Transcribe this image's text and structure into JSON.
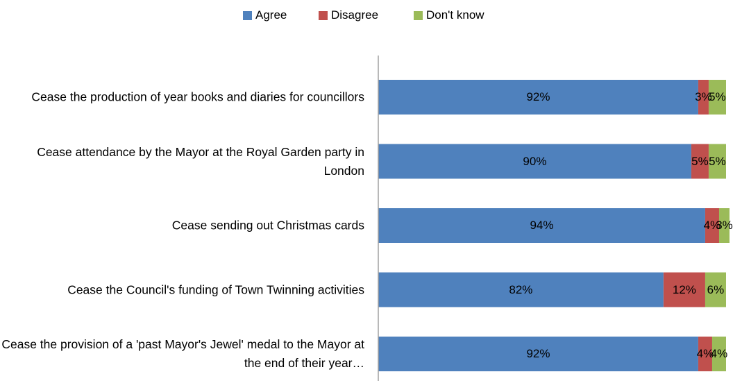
{
  "chart_data": {
    "type": "stacked-bar-horizontal",
    "categories": [
      "Cease the production of year books and diaries for councillors",
      "Cease attendance by the Mayor at the Royal Garden party in London",
      "Cease sending out Christmas cards",
      "Cease the Council's funding of Town Twinning activities",
      "Cease the provision of a 'past Mayor's Jewel' medal to the Mayor at the end of their year…"
    ],
    "series": [
      {
        "name": "Agree",
        "color": "#4f81bd",
        "values": [
          92,
          90,
          94,
          82,
          92
        ],
        "value_labels": [
          "92%",
          "90%",
          "94%",
          "82%",
          "92%"
        ]
      },
      {
        "name": "Disagree",
        "color": "#c0504d",
        "values": [
          3,
          5,
          4,
          12,
          4
        ],
        "value_labels": [
          "3%",
          "5%",
          "4%",
          "12%",
          "4%"
        ]
      },
      {
        "name": "Don't know",
        "color": "#9bbb59",
        "values": [
          5,
          5,
          3,
          6,
          4
        ],
        "value_labels": [
          "5%",
          "5%",
          "3%",
          "6%",
          "4%"
        ]
      }
    ],
    "xlim": [
      0,
      100
    ],
    "legend": "top"
  }
}
